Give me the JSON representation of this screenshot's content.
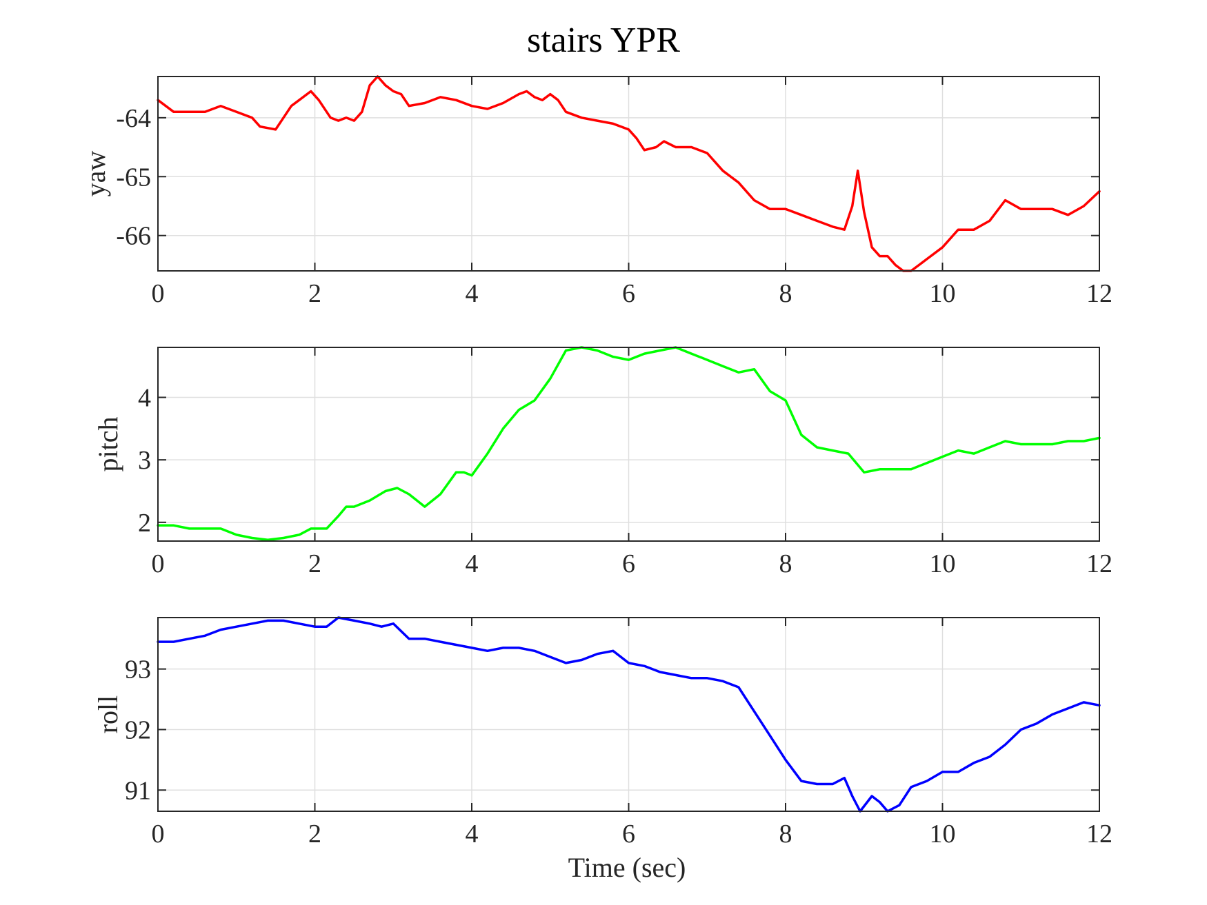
{
  "chart_data": {
    "type": "line",
    "title": "stairs YPR",
    "xlabel": "Time (sec)",
    "xlim": [
      0,
      12
    ],
    "xticks": [
      0,
      2,
      4,
      6,
      8,
      10,
      12
    ],
    "grid": true,
    "subplots": [
      {
        "ylabel": "yaw",
        "ylim": [
          -66.6,
          -63.3
        ],
        "yticks": [
          -64,
          -65,
          -66
        ],
        "color": "#ff0000",
        "x": [
          0,
          0.2,
          0.4,
          0.6,
          0.8,
          1.0,
          1.2,
          1.3,
          1.5,
          1.6,
          1.7,
          1.8,
          1.95,
          2.05,
          2.2,
          2.3,
          2.4,
          2.5,
          2.6,
          2.7,
          2.8,
          2.9,
          3.0,
          3.1,
          3.2,
          3.4,
          3.6,
          3.8,
          4.0,
          4.2,
          4.4,
          4.6,
          4.7,
          4.8,
          4.9,
          5.0,
          5.1,
          5.2,
          5.4,
          5.6,
          5.8,
          6.0,
          6.1,
          6.2,
          6.35,
          6.45,
          6.6,
          6.8,
          7.0,
          7.2,
          7.4,
          7.6,
          7.8,
          8.0,
          8.2,
          8.4,
          8.6,
          8.75,
          8.85,
          8.92,
          9.0,
          9.1,
          9.2,
          9.3,
          9.4,
          9.5,
          9.6,
          9.7,
          9.8,
          10.0,
          10.2,
          10.4,
          10.6,
          10.8,
          11.0,
          11.2,
          11.4,
          11.6,
          11.8,
          12.0
        ],
        "y": [
          -63.7,
          -63.9,
          -63.9,
          -63.9,
          -63.8,
          -63.9,
          -64.0,
          -64.15,
          -64.2,
          -64.0,
          -63.8,
          -63.7,
          -63.55,
          -63.7,
          -64.0,
          -64.05,
          -64.0,
          -64.05,
          -63.9,
          -63.45,
          -63.3,
          -63.45,
          -63.55,
          -63.6,
          -63.8,
          -63.75,
          -63.65,
          -63.7,
          -63.8,
          -63.85,
          -63.75,
          -63.6,
          -63.55,
          -63.65,
          -63.7,
          -63.6,
          -63.7,
          -63.9,
          -64.0,
          -64.05,
          -64.1,
          -64.2,
          -64.35,
          -64.55,
          -64.5,
          -64.4,
          -64.5,
          -64.5,
          -64.6,
          -64.9,
          -65.1,
          -65.4,
          -65.55,
          -65.55,
          -65.65,
          -65.75,
          -65.85,
          -65.9,
          -65.5,
          -64.9,
          -65.6,
          -66.2,
          -66.35,
          -66.35,
          -66.5,
          -66.6,
          -66.6,
          -66.5,
          -66.4,
          -66.2,
          -65.9,
          -65.9,
          -65.75,
          -65.4,
          -65.55,
          -65.55,
          -65.55,
          -65.65,
          -65.5,
          -65.25
        ]
      },
      {
        "ylabel": "pitch",
        "ylim": [
          1.7,
          4.8
        ],
        "yticks": [
          2,
          3,
          4
        ],
        "color": "#00ff00",
        "x": [
          0,
          0.2,
          0.4,
          0.6,
          0.8,
          1.0,
          1.2,
          1.4,
          1.6,
          1.8,
          1.95,
          2.15,
          2.3,
          2.4,
          2.5,
          2.7,
          2.9,
          3.05,
          3.2,
          3.4,
          3.6,
          3.8,
          3.9,
          4.0,
          4.2,
          4.4,
          4.6,
          4.8,
          5.0,
          5.2,
          5.4,
          5.6,
          5.8,
          6.0,
          6.2,
          6.4,
          6.6,
          6.8,
          7.0,
          7.2,
          7.4,
          7.6,
          7.8,
          8.0,
          8.2,
          8.4,
          8.6,
          8.8,
          9.0,
          9.2,
          9.4,
          9.6,
          9.8,
          10.0,
          10.2,
          10.4,
          10.6,
          10.8,
          11.0,
          11.2,
          11.4,
          11.6,
          11.8,
          12.0
        ],
        "y": [
          1.95,
          1.95,
          1.9,
          1.9,
          1.9,
          1.8,
          1.75,
          1.72,
          1.75,
          1.8,
          1.9,
          1.9,
          2.1,
          2.25,
          2.25,
          2.35,
          2.5,
          2.55,
          2.45,
          2.25,
          2.45,
          2.8,
          2.8,
          2.75,
          3.1,
          3.5,
          3.8,
          3.95,
          4.3,
          4.75,
          4.8,
          4.75,
          4.65,
          4.6,
          4.7,
          4.75,
          4.8,
          4.7,
          4.6,
          4.5,
          4.4,
          4.45,
          4.1,
          3.95,
          3.4,
          3.2,
          3.15,
          3.1,
          2.8,
          2.85,
          2.85,
          2.85,
          2.95,
          3.05,
          3.15,
          3.1,
          3.2,
          3.3,
          3.25,
          3.25,
          3.25,
          3.3,
          3.3,
          3.35
        ]
      },
      {
        "ylabel": "roll",
        "ylim": [
          90.65,
          93.85
        ],
        "yticks": [
          91,
          92,
          93
        ],
        "color": "#0000ff",
        "x": [
          0,
          0.2,
          0.4,
          0.6,
          0.8,
          1.0,
          1.2,
          1.4,
          1.6,
          1.8,
          2.0,
          2.15,
          2.3,
          2.5,
          2.7,
          2.85,
          3.0,
          3.2,
          3.4,
          3.6,
          3.8,
          4.0,
          4.2,
          4.4,
          4.6,
          4.8,
          5.0,
          5.2,
          5.4,
          5.6,
          5.8,
          6.0,
          6.2,
          6.4,
          6.6,
          6.8,
          7.0,
          7.2,
          7.4,
          7.6,
          7.8,
          8.0,
          8.2,
          8.4,
          8.6,
          8.75,
          8.85,
          8.95,
          9.1,
          9.2,
          9.3,
          9.45,
          9.6,
          9.8,
          10.0,
          10.2,
          10.4,
          10.6,
          10.8,
          11.0,
          11.2,
          11.4,
          11.6,
          11.8,
          12.0
        ],
        "y": [
          93.45,
          93.45,
          93.5,
          93.55,
          93.65,
          93.7,
          93.75,
          93.8,
          93.8,
          93.75,
          93.7,
          93.7,
          93.85,
          93.8,
          93.75,
          93.7,
          93.75,
          93.5,
          93.5,
          93.45,
          93.4,
          93.35,
          93.3,
          93.35,
          93.35,
          93.3,
          93.2,
          93.1,
          93.15,
          93.25,
          93.3,
          93.1,
          93.05,
          92.95,
          92.9,
          92.85,
          92.85,
          92.8,
          92.7,
          92.3,
          91.9,
          91.5,
          91.15,
          91.1,
          91.1,
          91.2,
          90.9,
          90.65,
          90.9,
          90.8,
          90.65,
          90.75,
          91.05,
          91.15,
          91.3,
          91.3,
          91.45,
          91.55,
          91.75,
          92.0,
          92.1,
          92.25,
          92.35,
          92.45,
          92.4
        ]
      }
    ]
  }
}
